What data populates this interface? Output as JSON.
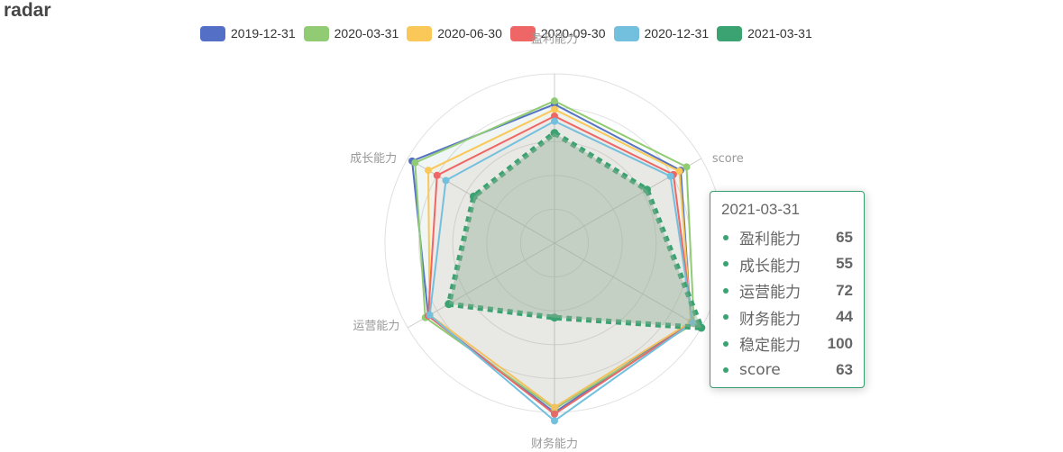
{
  "title": "radar",
  "tooltip": {
    "title": "2021-03-31",
    "color": "#3ba272",
    "rows": [
      {
        "name": "盈利能力",
        "value": "65"
      },
      {
        "name": "成长能力",
        "value": "55"
      },
      {
        "name": "运营能力",
        "value": "72"
      },
      {
        "name": "财务能力",
        "value": "44"
      },
      {
        "name": "稳定能力",
        "value": "100"
      },
      {
        "name": "score",
        "value": "63"
      }
    ]
  },
  "chart_data": {
    "type": "radar",
    "title": "radar",
    "indicators": [
      "盈利能力",
      "score",
      "稳定能力",
      "财务能力",
      "运营能力",
      "成长能力"
    ],
    "axis_labels_shown": [
      "盈利能力",
      "score",
      "",
      "财务能力",
      "运营能力",
      "成长能力"
    ],
    "max": 100,
    "series": [
      {
        "name": "2019-12-31",
        "color": "#5470c6",
        "values": [
          82,
          86,
          93,
          100,
          86,
          97
        ]
      },
      {
        "name": "2020-03-31",
        "color": "#91cc75",
        "values": [
          84,
          90,
          95,
          98,
          88,
          95
        ]
      },
      {
        "name": "2020-06-30",
        "color": "#fac858",
        "values": [
          79,
          85,
          93,
          97,
          85,
          86
        ]
      },
      {
        "name": "2020-09-30",
        "color": "#ee6666",
        "values": [
          75,
          81,
          94,
          101,
          86,
          80
        ]
      },
      {
        "name": "2020-12-31",
        "color": "#73c0de",
        "values": [
          72,
          79,
          94,
          105,
          85,
          74
        ]
      },
      {
        "name": "2021-03-31",
        "color": "#3ba272",
        "values": [
          65,
          63,
          100,
          44,
          72,
          55
        ],
        "highlighted": true
      }
    ]
  }
}
